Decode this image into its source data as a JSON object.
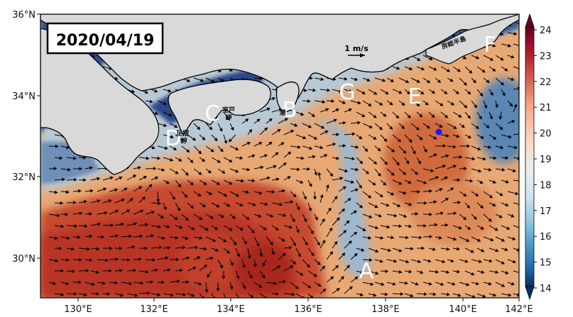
{
  "date_label": "2020/04/19",
  "scale_label": "1 m/s",
  "x_ticks": [
    "130°E",
    "132°E",
    "134°E",
    "136°E",
    "138°E",
    "140°E",
    "142°E"
  ],
  "y_ticks": [
    "36°N",
    "34°N",
    "32°N",
    "30°N"
  ],
  "colorbar": {
    "ticks": [
      "24",
      "23",
      "22",
      "21",
      "20",
      "19",
      "18",
      "17",
      "16",
      "15",
      "14"
    ],
    "colors": [
      "#67001f",
      "#b2182b",
      "#d6604d",
      "#f4a582",
      "#fddbc7",
      "#f7f7f7",
      "#d1e5f0",
      "#92c5de",
      "#4393c3",
      "#2166ac",
      "#053061"
    ]
  },
  "regions": [
    "A",
    "B",
    "C",
    "D",
    "E",
    "F",
    "G"
  ],
  "places": [
    "室戸",
    "岬",
    "足摺",
    "岬",
    "潮",
    "房総半島"
  ],
  "marker_color": "#1a1aff",
  "land_color": "#d9d9d9",
  "warm_color": "#c8452d",
  "cool_color": "#9fbcd4"
}
